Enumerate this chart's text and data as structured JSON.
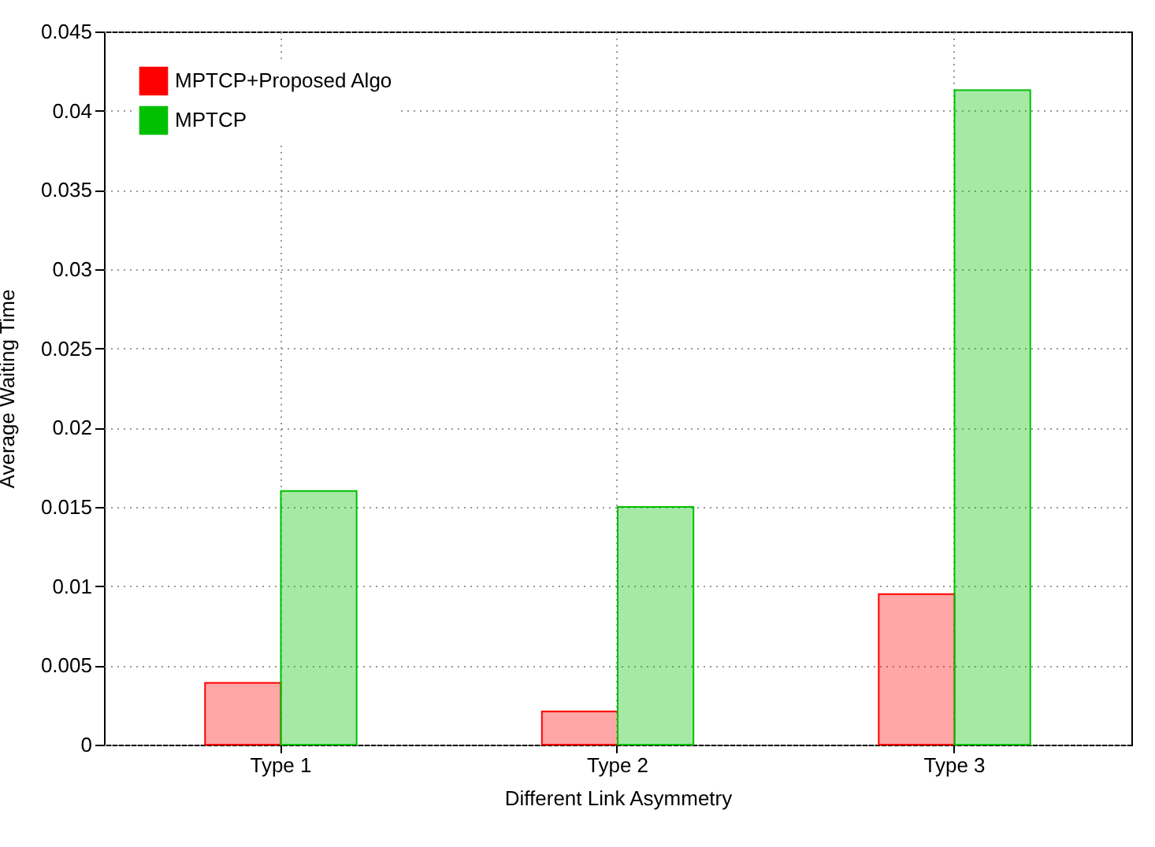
{
  "chart_data": {
    "type": "bar",
    "xlabel": "Different Link Asymmetry",
    "ylabel": "Average Waiting Time",
    "categories": [
      "Type 1",
      "Type 2",
      "Type 3"
    ],
    "series": [
      {
        "name": "MPTCP+Proposed Algo",
        "color": "#ff0000",
        "values": [
          0.0039,
          0.0021,
          0.0095
        ]
      },
      {
        "name": "MPTCP",
        "color": "#00c000",
        "values": [
          0.016,
          0.015,
          0.0413
        ]
      }
    ],
    "ylim": [
      0,
      0.045
    ],
    "yticks": [
      0,
      0.005,
      0.01,
      0.015,
      0.02,
      0.025,
      0.03,
      0.035,
      0.04,
      0.045
    ],
    "grid": true,
    "legend": "top left"
  }
}
